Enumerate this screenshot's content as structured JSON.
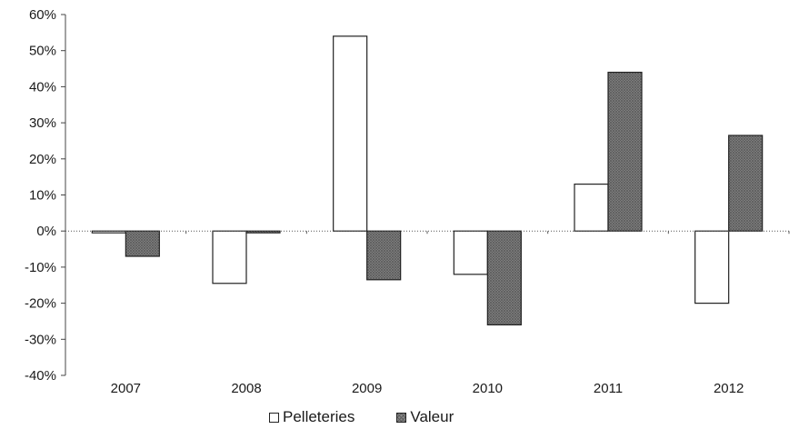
{
  "chart_data": {
    "type": "bar",
    "categories": [
      "2007",
      "2008",
      "2009",
      "2010",
      "2011",
      "2012"
    ],
    "series": [
      {
        "name": "Pelleteries",
        "values": [
          -0.5,
          -14.5,
          54,
          -12,
          13,
          -20
        ],
        "fill": "#ffffff"
      },
      {
        "name": "Valeur",
        "values": [
          -7,
          -0.5,
          -13.5,
          -26,
          44,
          26.5
        ],
        "fill": "#8c8c8c"
      }
    ],
    "ylim": [
      -40,
      60
    ],
    "yticks": [
      "60%",
      "50%",
      "40%",
      "30%",
      "20%",
      "10%",
      "0%",
      "-10%",
      "-20%",
      "-30%",
      "-40%"
    ],
    "ytick_values": [
      60,
      50,
      40,
      30,
      20,
      10,
      0,
      -10,
      -20,
      -30,
      -40
    ],
    "title": "",
    "xlabel": "",
    "ylabel": "",
    "legend_position": "bottom",
    "grid": false
  }
}
